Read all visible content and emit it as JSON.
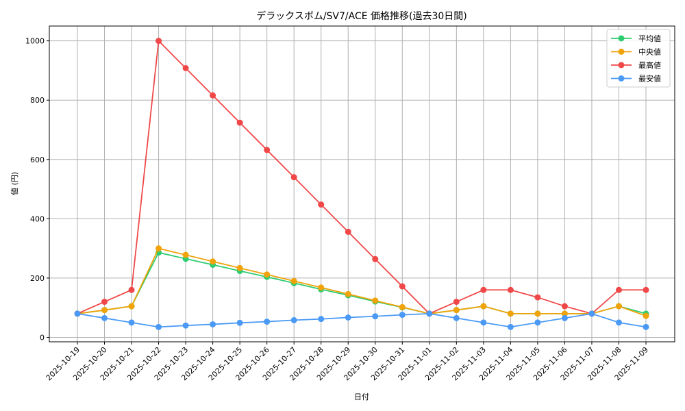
{
  "chart_data": {
    "type": "line",
    "title": "デラックスボム/SV7/ACE 価格推移(過去30日間)",
    "xlabel": "日付",
    "ylabel": "値 (円)",
    "ylim": [
      -15,
      1050
    ],
    "yticks": [
      0,
      200,
      400,
      600,
      800,
      1000
    ],
    "grid": true,
    "legend_position": "upper right",
    "categories": [
      "2025-10-19",
      "2025-10-20",
      "2025-10-21",
      "2025-10-22",
      "2025-10-23",
      "2025-10-24",
      "2025-10-25",
      "2025-10-26",
      "2025-10-27",
      "2025-10-28",
      "2025-10-29",
      "2025-10-30",
      "2025-10-31",
      "2025-11-01",
      "2025-11-02",
      "2025-11-03",
      "2025-11-04",
      "2025-11-05",
      "2025-11-06",
      "2025-11-07",
      "2025-11-08",
      "2025-11-09"
    ],
    "series": [
      {
        "name": "平均値",
        "color": "#2ecc71",
        "values": [
          80,
          92,
          105,
          286,
          265,
          245,
          224,
          204,
          183,
          162,
          142,
          121,
          101,
          80,
          92,
          105,
          80,
          80,
          80,
          80,
          105,
          80
        ]
      },
      {
        "name": "中央値",
        "color": "#f0a30a",
        "values": [
          80,
          92,
          105,
          300,
          278,
          256,
          234,
          212,
          190,
          168,
          146,
          124,
          102,
          80,
          92,
          105,
          80,
          80,
          80,
          80,
          105,
          72.5
        ]
      },
      {
        "name": "最高値",
        "color": "#f04848",
        "values": [
          80,
          120,
          160,
          1000,
          908,
          816,
          724,
          632,
          540,
          448,
          356,
          264,
          172,
          80,
          120,
          160,
          160,
          135,
          105,
          80,
          160,
          160
        ]
      },
      {
        "name": "最安値",
        "color": "#4a9af5",
        "values": [
          80,
          65,
          50,
          35,
          40,
          44,
          49,
          53,
          58,
          62,
          67,
          71,
          76,
          80,
          65,
          50,
          35,
          50,
          65,
          80,
          50,
          35
        ]
      }
    ]
  }
}
